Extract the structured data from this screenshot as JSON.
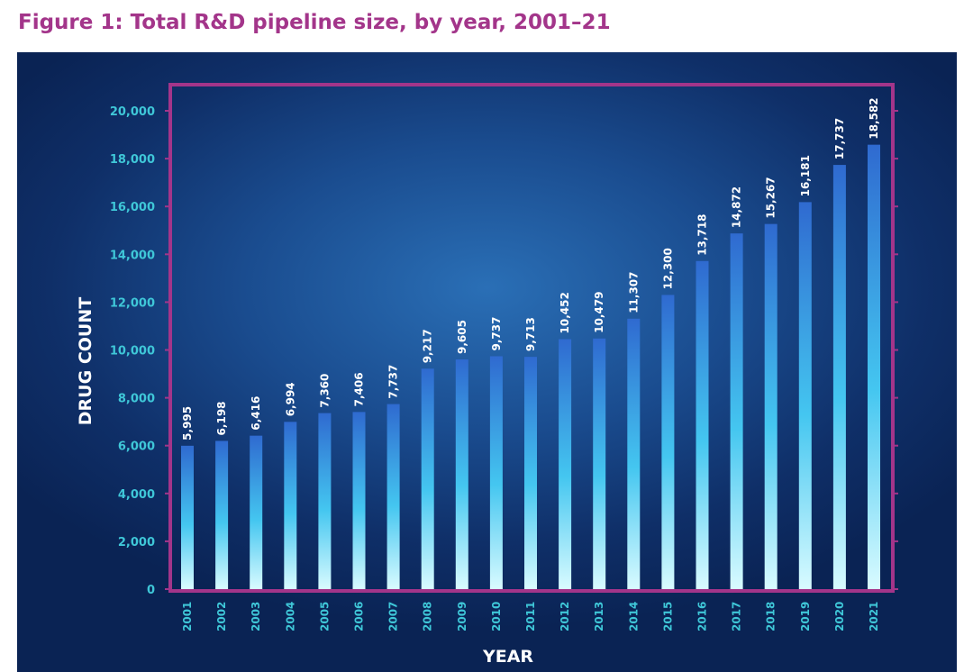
{
  "title": "Figure 1: Total R&D pipeline size, by year, 2001–21",
  "colors": {
    "title": "#a3358a",
    "frame": "#a3358a",
    "tick_text": "#3fc7d8",
    "bar_top": "#2f6ad0",
    "bar_mid": "#44c6f0",
    "bar_bottom": "#d9fbff",
    "label_text": "#ffffff"
  },
  "chart_data": {
    "type": "bar",
    "title": "Figure 1: Total R&D pipeline size, by year, 2001–21",
    "xlabel": "YEAR",
    "ylabel": "DRUG COUNT",
    "ylim": [
      0,
      20000
    ],
    "yticks": [
      0,
      2000,
      4000,
      6000,
      8000,
      10000,
      12000,
      14000,
      16000,
      18000,
      20000
    ],
    "ytick_labels": [
      "0",
      "2,000",
      "4,000",
      "6,000",
      "8,000",
      "10,000",
      "12,000",
      "14,000",
      "16,000",
      "18,000",
      "20,000"
    ],
    "grid": false,
    "categories": [
      "2001",
      "2002",
      "2003",
      "2004",
      "2005",
      "2006",
      "2007",
      "2008",
      "2009",
      "2010",
      "2011",
      "2012",
      "2013",
      "2014",
      "2015",
      "2016",
      "2017",
      "2018",
      "2019",
      "2020",
      "2021"
    ],
    "values": [
      5995,
      6198,
      6416,
      6994,
      7360,
      7406,
      7737,
      9217,
      9605,
      9737,
      9713,
      10452,
      10479,
      11307,
      12300,
      13718,
      14872,
      15267,
      16181,
      17737,
      18582
    ],
    "value_labels": [
      "5,995",
      "6,198",
      "6,416",
      "6,994",
      "7,360",
      "7,406",
      "7,737",
      "9,217",
      "9,605",
      "9,737",
      "9,713",
      "10,452",
      "10,479",
      "11,307",
      "12,300",
      "13,718",
      "14,872",
      "15,267",
      "16,181",
      "17,737",
      "18,582"
    ]
  }
}
